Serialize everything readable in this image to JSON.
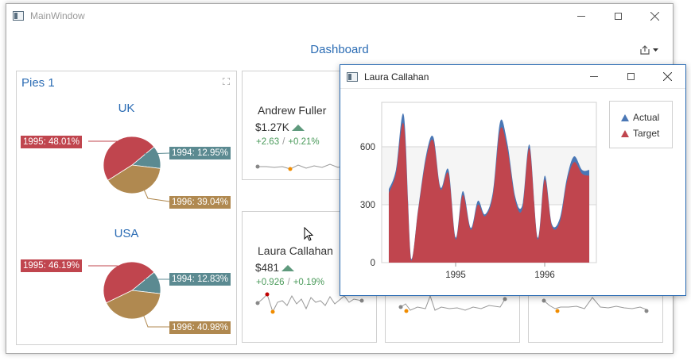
{
  "window": {
    "title": "MainWindow",
    "icon": "window-icon"
  },
  "dashboard": {
    "title": "Dashboard"
  },
  "pies": {
    "title": "Pies 1",
    "charts": [
      {
        "name": "UK",
        "slices": [
          {
            "label": "1994: 12.95%",
            "value": 12.95,
            "color": "#5b8a91"
          },
          {
            "label": "1996: 39.04%",
            "value": 39.04,
            "color": "#b08950"
          },
          {
            "label": "1995: 48.01%",
            "value": 48.01,
            "color": "#c0454e"
          }
        ]
      },
      {
        "name": "USA",
        "slices": [
          {
            "label": "1994: 12.83%",
            "value": 12.83,
            "color": "#5b8a91"
          },
          {
            "label": "1996: 40.98%",
            "value": 40.98,
            "color": "#b08950"
          },
          {
            "label": "1995: 46.19%",
            "value": 46.19,
            "color": "#c0454e"
          }
        ]
      }
    ]
  },
  "cards": [
    {
      "name": "Andrew Fuller",
      "value": "$1.27K",
      "delta_abs": "+2.63",
      "delta_sep": "/",
      "delta_pct": "+0.21%"
    },
    {
      "name": "Laura Callahan",
      "value": "$481",
      "delta_abs": "+0.926",
      "delta_sep": "/",
      "delta_pct": "+0.19%"
    }
  ],
  "popup": {
    "title": "Laura Callahan",
    "legend": [
      {
        "name": "Actual",
        "color": "#4a77b5"
      },
      {
        "name": "Target",
        "color": "#c0454e"
      }
    ]
  },
  "chart_data": {
    "type": "area",
    "x": [
      1994.25,
      1994.33,
      1994.42,
      1994.5,
      1994.58,
      1994.67,
      1994.75,
      1994.83,
      1994.92,
      1995.0,
      1995.08,
      1995.17,
      1995.25,
      1995.33,
      1995.42,
      1995.5,
      1995.58,
      1995.67,
      1995.75,
      1995.83,
      1995.92,
      1996.0,
      1996.08,
      1996.17,
      1996.25,
      1996.33,
      1996.42,
      1996.5
    ],
    "series": [
      {
        "name": "Actual",
        "values": [
          380,
          480,
          760,
          20,
          280,
          560,
          650,
          390,
          480,
          130,
          370,
          180,
          320,
          250,
          370,
          730,
          620,
          340,
          300,
          610,
          130,
          450,
          200,
          230,
          440,
          550,
          480,
          480
        ]
      },
      {
        "name": "Target",
        "values": [
          360,
          460,
          710,
          10,
          270,
          540,
          630,
          380,
          460,
          120,
          350,
          170,
          300,
          240,
          350,
          690,
          590,
          320,
          280,
          590,
          120,
          430,
          190,
          210,
          420,
          520,
          460,
          450
        ]
      }
    ],
    "x_ticks": [
      "1995",
      "1996"
    ],
    "y_ticks": [
      "0",
      "300",
      "600"
    ],
    "ylim": [
      0,
      830
    ],
    "xlim": [
      1994.17,
      1996.58
    ],
    "grid": true,
    "legend_position": "right"
  }
}
